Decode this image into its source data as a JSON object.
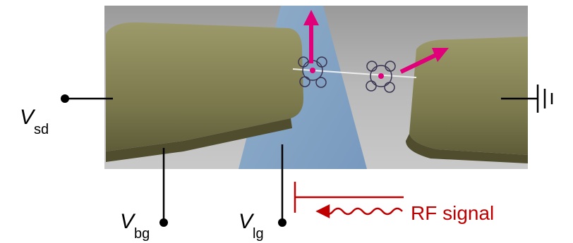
{
  "labels": [
    {
      "main": "V",
      "sub": "sd"
    },
    {
      "main": "V",
      "sub": "bg"
    },
    {
      "main": "V",
      "sub": "lg"
    }
  ],
  "rf_label": "RF signal"
}
